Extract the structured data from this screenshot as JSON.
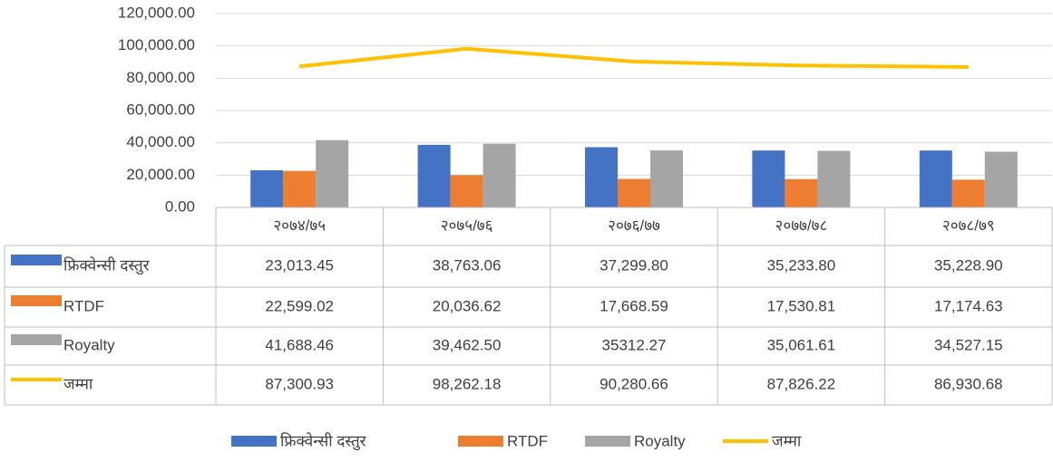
{
  "chart_data": {
    "type": "bar",
    "categories": [
      "२०७४/७५",
      "२०७५/७६",
      "२०७६/७७",
      "२०७७/७८",
      "२०७८/७९"
    ],
    "series": [
      {
        "name": "फ्रिक्वेन्सी दस्तुर",
        "type": "bar",
        "color": "#4472c4",
        "values": [
          23013.45,
          38763.06,
          37299.8,
          35233.8,
          35228.9
        ],
        "value_labels": [
          "23,013.45",
          "38,763.06",
          "37,299.80",
          "35,233.80",
          "35,228.90"
        ]
      },
      {
        "name": "RTDF",
        "type": "bar",
        "color": "#ed7d31",
        "values": [
          22599.02,
          20036.62,
          17668.59,
          17530.81,
          17174.63
        ],
        "value_labels": [
          "22,599.02",
          "20,036.62",
          "17,668.59",
          "17,530.81",
          "17,174.63"
        ]
      },
      {
        "name": "Royalty",
        "type": "bar",
        "color": "#a5a5a5",
        "values": [
          41688.46,
          39462.5,
          35312.27,
          35061.61,
          34527.15
        ],
        "value_labels": [
          "41,688.46",
          "39,462.50",
          "35312.27",
          "35,061.61",
          "34,527.15"
        ]
      },
      {
        "name": "जम्मा",
        "type": "line",
        "color": "#ffc000",
        "values": [
          87300.93,
          98262.18,
          90280.66,
          87826.22,
          86930.68
        ],
        "value_labels": [
          "87,300.93",
          "98,262.18",
          "90,280.66",
          "87,826.22",
          "86,930.68"
        ]
      }
    ],
    "ylim": [
      0,
      120000
    ],
    "yticks": [
      {
        "value": 0,
        "label": "0.00"
      },
      {
        "value": 20000,
        "label": "20,000.00"
      },
      {
        "value": 40000,
        "label": "40,000.00"
      },
      {
        "value": 60000,
        "label": "60,000.00"
      },
      {
        "value": 80000,
        "label": "80,000.00"
      },
      {
        "value": 100000,
        "label": "100,000.00"
      },
      {
        "value": 120000,
        "label": "120,000.00"
      }
    ],
    "grid": true,
    "legend": "bottom",
    "data_table": true
  }
}
